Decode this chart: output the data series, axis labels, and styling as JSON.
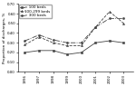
{
  "years": [
    1996,
    1997,
    1998,
    1999,
    2000,
    2001,
    2002,
    2003
  ],
  "series": [
    {
      "label": "< 100 beds",
      "values": [
        0.2,
        0.22,
        0.22,
        0.18,
        0.2,
        0.3,
        0.32,
        0.3
      ],
      "color": "#444444",
      "marker": "s",
      "linestyle": "-"
    },
    {
      "label": "100-299 beds",
      "values": [
        0.28,
        0.36,
        0.3,
        0.27,
        0.27,
        0.46,
        0.62,
        0.5
      ],
      "color": "#444444",
      "marker": "^",
      "linestyle": "--"
    },
    {
      "label": "> 300 beds",
      "values": [
        0.32,
        0.38,
        0.33,
        0.3,
        0.3,
        0.46,
        0.55,
        0.55
      ],
      "color": "#444444",
      "marker": "o",
      "linestyle": "-."
    }
  ],
  "ylabel": "Proportion of discharges, %",
  "ylim": [
    0.0,
    0.7
  ],
  "yticks": [
    0.0,
    0.1,
    0.2,
    0.3,
    0.4,
    0.5,
    0.6,
    0.7
  ],
  "ytick_labels": [
    "0.00",
    "0.10",
    "0.20",
    "0.30",
    "0.40",
    "0.50",
    "0.60",
    "0.70"
  ],
  "background_color": "#ffffff",
  "legend_fontsize": 3.0,
  "axis_label_fontsize": 3.0,
  "tick_fontsize": 2.8,
  "linewidth": 0.6,
  "markersize": 1.5
}
